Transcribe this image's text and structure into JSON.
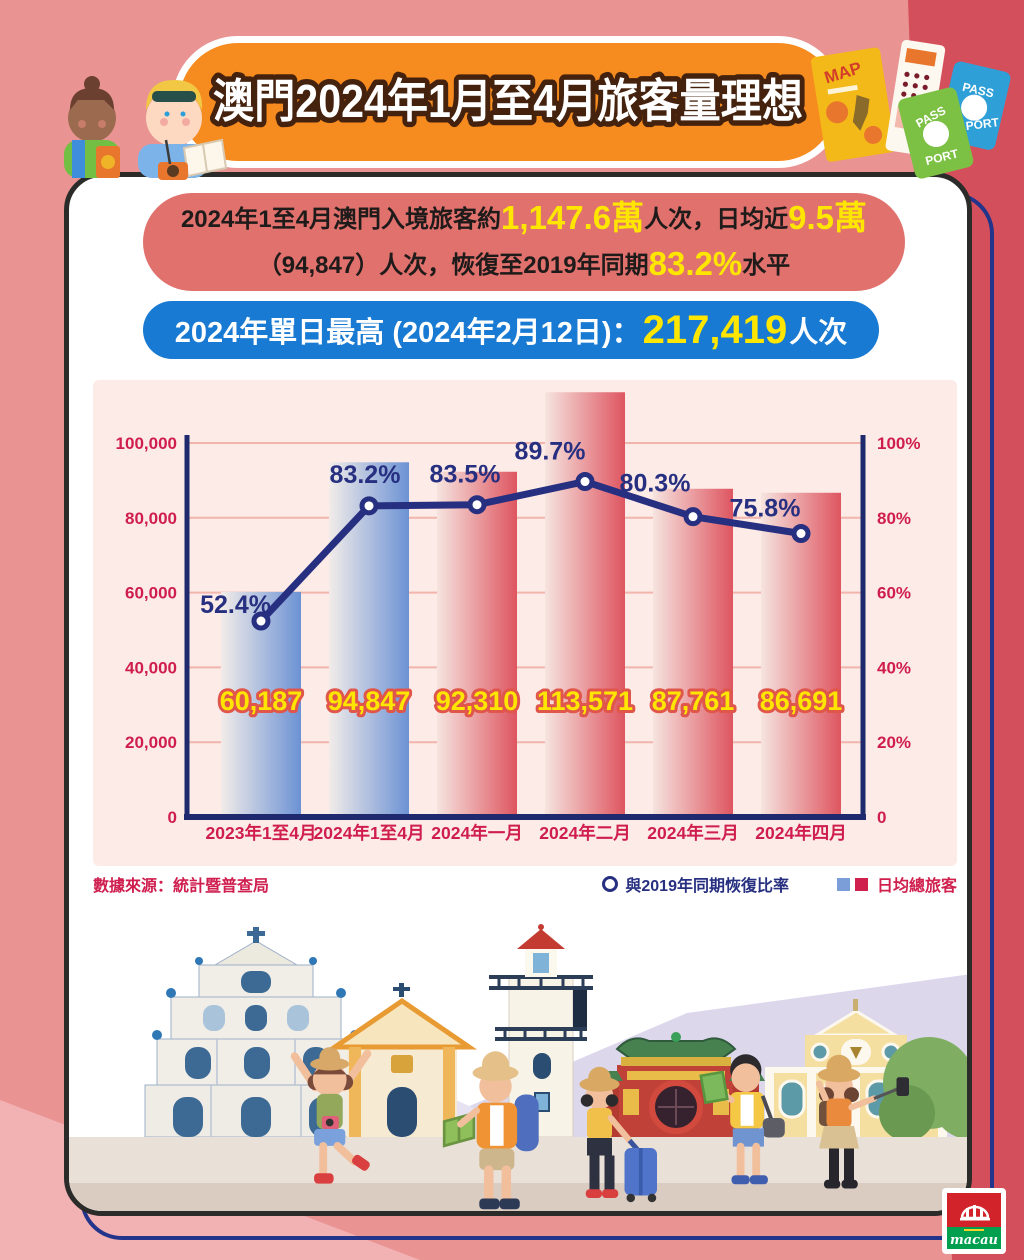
{
  "page": {
    "title": "澳門2024年1月至4月旅客量理想"
  },
  "summary_box": {
    "l1a": "2024年1至4月澳門入境旅客約",
    "l1b": "1,147.6萬",
    "l1c": "人次，日均近",
    "l1d": "9.5萬",
    "l2a": "（94,847）人次，恢復至2019年同期",
    "l2b": "83.2%",
    "l2c": "水平"
  },
  "peak_box": {
    "a": "2024年單日最高 (2024年2月12日)：",
    "b": "217,419",
    "c": "人次"
  },
  "chart_data": {
    "type": "bar",
    "categories": [
      "2023年1至4月",
      "2024年1至4月",
      "2024年一月",
      "2024年二月",
      "2024年三月",
      "2024年四月"
    ],
    "series": [
      {
        "name": "日均總旅客",
        "type": "bar",
        "values": [
          60187,
          94847,
          92310,
          113571,
          87761,
          86691
        ],
        "value_labels": [
          "60,187",
          "94,847",
          "92,310",
          "113,571",
          "87,761",
          "86,691"
        ],
        "bar_palette": [
          "blue",
          "blue",
          "red",
          "red",
          "red",
          "red"
        ]
      },
      {
        "name": "與2019年同期恢復比率",
        "type": "line",
        "values": [
          52.4,
          83.2,
          83.5,
          89.7,
          80.3,
          75.8
        ],
        "value_labels": [
          "52.4%",
          "83.2%",
          "83.5%",
          "89.7%",
          "80.3%",
          "75.8%"
        ]
      }
    ],
    "left_axis": {
      "min": 0,
      "max": 100000,
      "label_ticks": [
        "0",
        "20,000",
        "40,000",
        "60,000",
        "80,000",
        "100,000"
      ]
    },
    "right_axis": {
      "min": 0,
      "max": 100,
      "label_ticks": [
        "0",
        "20%",
        "40%",
        "60%",
        "80%",
        "100%"
      ]
    },
    "grid": true,
    "legend_position": "bottom-right",
    "source": "數據來源：統計暨普查局"
  },
  "legend": {
    "line_label": "與2019年同期恢復比率",
    "bar_label": "日均總旅客"
  },
  "decorations": {
    "map_label": "MAP",
    "passport_green_top": "PASS",
    "passport_green_bottom": "PORT",
    "passport_blue_top": "PASS",
    "passport_blue_bottom": "PORT"
  },
  "footer_logo": {
    "text": "macau"
  },
  "colors": {
    "background_pink": "#e99392",
    "banner_orange": "#f68b1f",
    "summary_red": "#e0716d",
    "peak_blue": "#187ad2",
    "highlight_yellow": "#ffe600",
    "panel_pink": "#fcebe6",
    "grid_pink": "#f1b5ad",
    "crimson_text": "#cf1e4e",
    "navy_line": "#272f80",
    "bar_blue": "#6c92d4",
    "bar_red": "#de5560",
    "bar_label_stroke": "#e0564b",
    "logo_red": "#d2232a",
    "logo_green": "#00a04e"
  }
}
